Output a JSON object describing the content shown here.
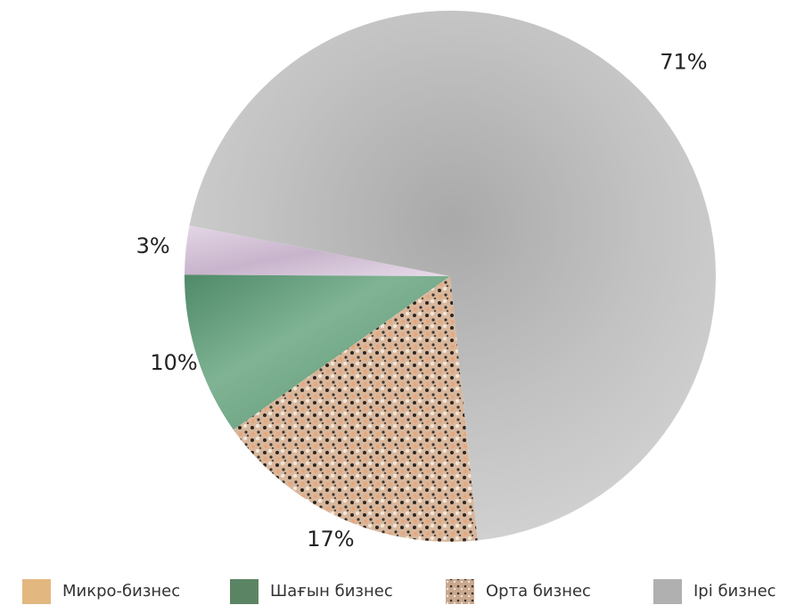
{
  "chart_data": {
    "type": "pie",
    "categories": [
      "Микро-бизнес",
      "Шағын бизнес",
      "Орта бизнес",
      "Ірі бизнес"
    ],
    "values": [
      3,
      10,
      17,
      71
    ],
    "value_labels": [
      "3%",
      "10%",
      "17%",
      "71%"
    ],
    "colors": [
      "#e2b880",
      "#5b8464",
      "#c9a88e",
      "#b0b0b0"
    ],
    "legend": "bottom"
  }
}
